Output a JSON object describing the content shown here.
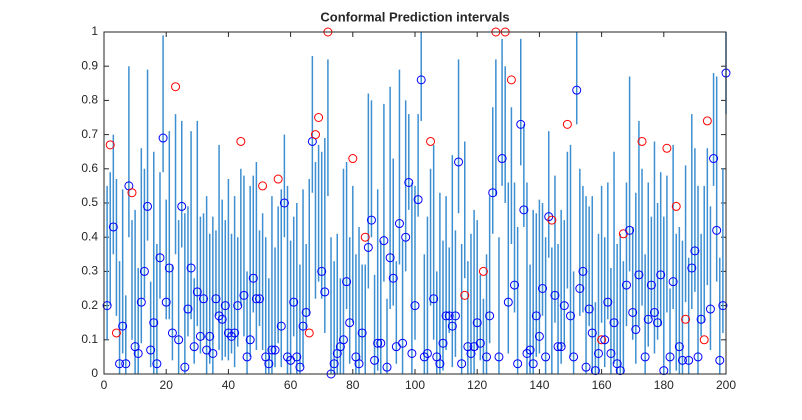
{
  "chart_data": {
    "type": "interval",
    "title": "Conformal Prediction intervals",
    "x": [
      1,
      2,
      3,
      4,
      5,
      6,
      7,
      8,
      9,
      10,
      11,
      12,
      13,
      14,
      15,
      16,
      17,
      18,
      19,
      20,
      21,
      22,
      23,
      24,
      25,
      26,
      27,
      28,
      29,
      30,
      31,
      32,
      33,
      34,
      35,
      36,
      37,
      38,
      39,
      40,
      41,
      42,
      43,
      44,
      45,
      46,
      47,
      48,
      49,
      50,
      51,
      52,
      53,
      54,
      55,
      56,
      57,
      58,
      59,
      60,
      61,
      62,
      63,
      64,
      65,
      66,
      67,
      68,
      69,
      70,
      71,
      72,
      73,
      74,
      75,
      76,
      77,
      78,
      79,
      80,
      81,
      82,
      83,
      84,
      85,
      86,
      87,
      88,
      89,
      90,
      91,
      92,
      93,
      94,
      95,
      96,
      97,
      98,
      99,
      100,
      101,
      102,
      103,
      104,
      105,
      106,
      107,
      108,
      109,
      110,
      111,
      112,
      113,
      114,
      115,
      116,
      117,
      118,
      119,
      120,
      121,
      122,
      123,
      124,
      125,
      126,
      127,
      128,
      129,
      130,
      131,
      132,
      133,
      134,
      135,
      136,
      137,
      138,
      139,
      140,
      141,
      142,
      143,
      144,
      145,
      146,
      147,
      148,
      149,
      150,
      151,
      152,
      153,
      154,
      155,
      156,
      157,
      158,
      159,
      160,
      161,
      162,
      163,
      164,
      165,
      166,
      167,
      168,
      169,
      170,
      171,
      172,
      173,
      174,
      175,
      176,
      177,
      178,
      179,
      180,
      181,
      182,
      183,
      184,
      185,
      186,
      187,
      188,
      189,
      190,
      191,
      192,
      193,
      194,
      195,
      196,
      197,
      198,
      199,
      200
    ],
    "values": [
      0.2,
      0.67,
      0.43,
      0.12,
      0.03,
      0.14,
      0.03,
      0.55,
      0.53,
      0.08,
      0.06,
      0.21,
      0.3,
      0.49,
      0.07,
      0.15,
      0.03,
      0.34,
      0.69,
      0.21,
      0.31,
      0.12,
      0.84,
      0.1,
      0.49,
      0.02,
      0.19,
      0.31,
      0.08,
      0.24,
      0.11,
      0.22,
      0.07,
      0.11,
      0.06,
      0.22,
      0.17,
      0.16,
      0.2,
      0.12,
      0.11,
      0.12,
      0.2,
      0.68,
      0.23,
      0.05,
      0.1,
      0.28,
      0.22,
      0.22,
      0.55,
      0.05,
      0.03,
      0.07,
      0.07,
      0.57,
      0.14,
      0.5,
      0.05,
      0.04,
      0.21,
      0.05,
      0.02,
      0.14,
      0.18,
      0.12,
      0.68,
      0.7,
      0.75,
      0.3,
      0.24,
      1,
      0,
      0.03,
      0.06,
      0.08,
      0.1,
      0.27,
      0.15,
      0.63,
      0.05,
      0.03,
      0.12,
      0.4,
      0.37,
      0.45,
      0.04,
      0.09,
      0.09,
      0.39,
      0.02,
      0.34,
      0.28,
      0.08,
      0.44,
      0.09,
      0.4,
      0.56,
      0.06,
      0.2,
      0.51,
      0.86,
      0.05,
      0.06,
      0.68,
      0.22,
      0.05,
      0.03,
      0.09,
      0.17,
      0.17,
      0.14,
      0.17,
      0.62,
      0.03,
      0.23,
      0.08,
      0.06,
      0.08,
      0.15,
      0.09,
      0.3,
      0.05,
      0.17,
      0.53,
      1,
      0.05,
      0.63,
      1,
      0.21,
      0.86,
      0.26,
      0.03,
      0.73,
      0.48,
      0.06,
      0.07,
      0.03,
      0.17,
      0.11,
      0.25,
      0.05,
      0.46,
      0.45,
      0.23,
      0.08,
      0.08,
      0.2,
      0.73,
      0.17,
      0.05,
      0.83,
      0.25,
      0.3,
      0.02,
      0.19,
      0.12,
      0.01,
      0.06,
      0.1,
      0.1,
      0.21,
      0.06,
      0.15,
      0.03,
      0.01,
      0.41,
      0.26,
      0.42,
      0.18,
      0.13,
      0.29,
      0.68,
      0.05,
      0.16,
      0.26,
      0.18,
      0.15,
      0.29,
      0.01,
      0.66,
      0.05,
      0.27,
      0.49,
      0.08,
      0.04,
      0.16,
      0.04,
      0.31,
      0.36,
      0.05,
      0.16,
      0.1,
      0.74,
      0.19,
      0.63,
      0.42,
      0.04,
      0.2,
      0.88
    ],
    "lower": [
      0.1,
      0.2,
      0.35,
      0.17,
      0,
      0.06,
      0,
      0.4,
      0.1,
      0,
      0,
      0.09,
      0.22,
      0.39,
      0.02,
      0,
      0,
      0.22,
      0.59,
      0.16,
      0.16,
      0.04,
      0.35,
      0,
      0.37,
      0,
      0.11,
      0.16,
      0.03,
      0.14,
      0.06,
      0.1,
      0,
      0.03,
      0,
      0.17,
      0.07,
      0.04,
      0.05,
      0.04,
      0.06,
      0.02,
      0.08,
      0.2,
      0.11,
      0,
      0.05,
      0.18,
      0.07,
      0.14,
      0.07,
      0,
      0,
      0,
      0.02,
      0.09,
      0.02,
      0.4,
      0,
      0,
      0.11,
      0,
      0,
      0.02,
      0.13,
      0.17,
      0.53,
      0.22,
      0.27,
      0.22,
      0.12,
      0.52,
      0,
      0,
      0,
      0,
      0,
      0.19,
      0.03,
      0.15,
      0,
      0,
      0.04,
      0,
      0.25,
      0.4,
      0,
      0.01,
      0,
      0.27,
      0,
      0.19,
      0.2,
      0.03,
      0.32,
      0,
      0.3,
      0.48,
      0,
      0.1,
      0.46,
      0.74,
      0,
      0,
      0.2,
      0.1,
      0,
      0,
      0.01,
      0.07,
      0.12,
      0.02,
      0.05,
      0.47,
      0,
      0.28,
      0,
      0,
      0,
      0.07,
      0.04,
      0,
      0,
      0.09,
      0.41,
      0.52,
      0,
      0.55,
      0.5,
      0.06,
      0.38,
      0.18,
      0,
      0.61,
      0.43,
      0,
      0,
      0,
      0.05,
      0.06,
      0.17,
      0,
      0.34,
      0,
      0.15,
      0,
      0.03,
      0.08,
      0.25,
      0.05,
      0,
      0.73,
      0.17,
      0.18,
      0,
      0.14,
      0,
      0,
      0,
      0.15,
      0.02,
      0.16,
      0,
      0.03,
      0,
      0,
      0,
      0.14,
      0.3,
      0.1,
      0.03,
      0.14,
      0.2,
      0,
      0.08,
      0.16,
      0.06,
      0.1,
      0.14,
      0,
      0.18,
      0,
      0.19,
      0.01,
      0,
      0,
      0.21,
      0,
      0.19,
      0.24,
      0,
      0.11,
      0.15,
      0.26,
      0.07,
      0.55,
      0.27,
      0,
      0.12,
      0.76
    ],
    "upper": [
      0.55,
      0.59,
      0.7,
      0.57,
      0.33,
      0.54,
      0.23,
      0.9,
      0.45,
      0.48,
      0.31,
      0.66,
      0.6,
      0.89,
      0.27,
      0.65,
      0.38,
      0.59,
      0.99,
      0.51,
      0.71,
      0.32,
      0.76,
      0.45,
      0.74,
      0.47,
      0.49,
      0.71,
      0.28,
      0.74,
      0.46,
      0.47,
      0.52,
      0.41,
      0.46,
      0.42,
      0.67,
      0.51,
      0.45,
      0.57,
      0.41,
      0.52,
      0.4,
      0.6,
      0.58,
      0.3,
      0.55,
      0.58,
      0.62,
      0.42,
      0.47,
      0.4,
      0.28,
      0.52,
      0.37,
      0.49,
      0.54,
      0.7,
      0.55,
      0.39,
      0.46,
      0.5,
      0.32,
      0.54,
      0.38,
      0.57,
      0.93,
      0.62,
      0.67,
      0.65,
      0.69,
      0.92,
      0.4,
      0.33,
      0.41,
      0.28,
      0.6,
      0.62,
      0.4,
      0.55,
      0.35,
      0.43,
      0.32,
      0.32,
      0.82,
      0.8,
      0.29,
      0.54,
      0.39,
      0.79,
      0.22,
      0.84,
      0.63,
      0.33,
      0.89,
      0.39,
      0.8,
      0.76,
      0.56,
      0.55,
      0.76,
      1,
      0.35,
      0.46,
      0.6,
      0.67,
      0.3,
      0.53,
      0.39,
      0.52,
      0.37,
      0.64,
      0.42,
      0.92,
      0.38,
      0.68,
      0.33,
      0.41,
      0.48,
      0.45,
      0.29,
      0.22,
      0.35,
      0.52,
      0.78,
      0.92,
      0.4,
      0.98,
      0.9,
      0.56,
      0.78,
      0.56,
      0.43,
      0.98,
      0.73,
      0.56,
      0.32,
      0.48,
      0.47,
      0.51,
      0.5,
      0.4,
      0.71,
      0.37,
      0.58,
      0.38,
      0.48,
      0.45,
      0.65,
      0.67,
      0.3,
      1,
      0.6,
      0.55,
      0.52,
      0.49,
      0.52,
      0.21,
      0.41,
      0.55,
      0.4,
      0.56,
      0.31,
      0.65,
      0.38,
      0.41,
      0.33,
      0.56,
      0.87,
      0.43,
      0.53,
      0.74,
      0.6,
      0.35,
      0.56,
      0.46,
      0.68,
      0.5,
      0.59,
      0.46,
      0.58,
      0.25,
      0.67,
      0.41,
      0.43,
      0.39,
      0.61,
      0.34,
      0.76,
      0.66,
      0.55,
      0.41,
      0.55,
      0.66,
      0.49,
      0.88,
      0.87,
      0.34,
      0.6,
      1
    ],
    "interval_color": "#3d8fd1",
    "inside_color": "#0000ff",
    "outside_color": "#ff0000",
    "xlim": [
      0,
      200
    ],
    "ylim": [
      0,
      1
    ],
    "xticks": [
      0,
      20,
      40,
      60,
      80,
      100,
      120,
      140,
      160,
      180,
      200
    ],
    "yticks": [
      0,
      0.1,
      0.2,
      0.3,
      0.4,
      0.5,
      0.6,
      0.7,
      0.8,
      0.9,
      1
    ]
  }
}
